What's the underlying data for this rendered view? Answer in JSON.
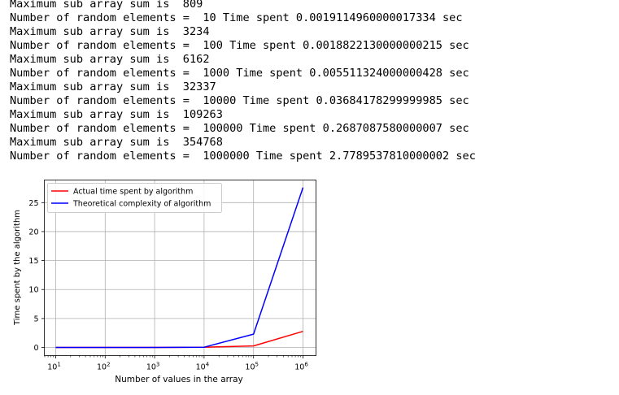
{
  "console_lines": [
    "Maximum sub array sum is  809",
    "Number of random elements =  10 Time spent 0.0019114960000017334 sec",
    "Maximum sub array sum is  3234",
    "Number of random elements =  100 Time spent 0.0018822130000000215 sec",
    "Maximum sub array sum is  6162",
    "Number of random elements =  1000 Time spent 0.005511324000000428 sec",
    "Maximum sub array sum is  32337",
    "Number of random elements =  10000 Time spent 0.03684178299999985 sec",
    "Maximum sub array sum is  109263",
    "Number of random elements =  100000 Time spent 0.2687087580000007 sec",
    "Maximum sub array sum is  354768",
    "Number of random elements =  1000000 Time spent 2.7789537810000002 sec"
  ],
  "chart_data": {
    "type": "line",
    "xscale": "log",
    "x": [
      10,
      100,
      1000,
      10000,
      100000,
      1000000
    ],
    "xlim": [
      10,
      1000000
    ],
    "xticks": [
      {
        "base": "10",
        "exp": "1"
      },
      {
        "base": "10",
        "exp": "2"
      },
      {
        "base": "10",
        "exp": "3"
      },
      {
        "base": "10",
        "exp": "4"
      },
      {
        "base": "10",
        "exp": "5"
      },
      {
        "base": "10",
        "exp": "6"
      }
    ],
    "ylim": [
      -1.4,
      28.9
    ],
    "yticks": [
      "0",
      "5",
      "10",
      "15",
      "20",
      "25"
    ],
    "xlabel": "Number of values in the array",
    "ylabel": "Time spent by the algorithm",
    "grid": true,
    "legend_position": "top-left",
    "series": [
      {
        "name": "Actual time spent by algorithm",
        "color": "#ff0000",
        "values": [
          0.0019114960000017334,
          0.0018822130000000215,
          0.005511324000000428,
          0.03684178299999985,
          0.2687087580000007,
          2.7789537810000002
        ]
      },
      {
        "name": "Theoretical complexity of algorithm",
        "color": "#0000ff",
        "values": [
          1e-05,
          0.0002,
          0.003,
          0.04,
          2.3,
          27.6
        ]
      }
    ]
  }
}
